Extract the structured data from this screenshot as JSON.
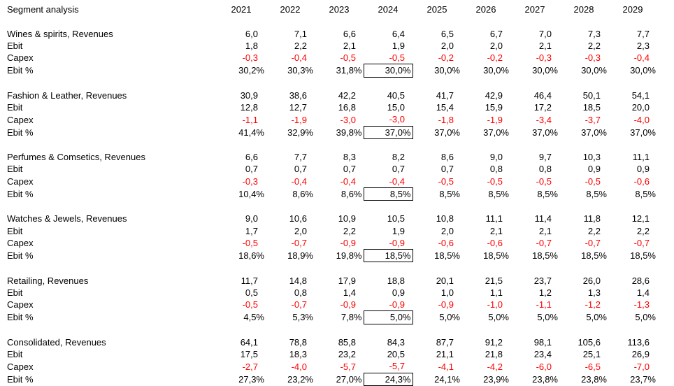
{
  "header": {
    "title": "Segment analysis",
    "years": [
      "2021",
      "2022",
      "2023",
      "2024",
      "2025",
      "2026",
      "2027",
      "2028",
      "2029"
    ]
  },
  "labels": {
    "revenues_suffix": ", Revenues",
    "ebit": "Ebit",
    "capex": "Capex",
    "ebit_pct": "Ebit %"
  },
  "highlight": {
    "year": "2024",
    "column_index": 3,
    "applies_to_row": "ebit_pct"
  },
  "colors": {
    "text": "#000000",
    "negative": "#ff0000",
    "background": "#ffffff",
    "box_border": "#000000"
  },
  "segments": [
    {
      "name": "Wines & spirits",
      "revenues": [
        "6,0",
        "7,1",
        "6,6",
        "6,4",
        "6,5",
        "6,7",
        "7,0",
        "7,3",
        "7,7"
      ],
      "ebit": [
        "1,8",
        "2,2",
        "2,1",
        "1,9",
        "2,0",
        "2,0",
        "2,1",
        "2,2",
        "2,3"
      ],
      "capex": [
        "-0,3",
        "-0,4",
        "-0,5",
        "-0,5",
        "-0,2",
        "-0,2",
        "-0,3",
        "-0,3",
        "-0,4"
      ],
      "ebit_pct": [
        "30,2%",
        "30,3%",
        "31,8%",
        "30,0%",
        "30,0%",
        "30,0%",
        "30,0%",
        "30,0%",
        "30,0%"
      ]
    },
    {
      "name": "Fashion & Leather",
      "revenues": [
        "30,9",
        "38,6",
        "42,2",
        "40,5",
        "41,7",
        "42,9",
        "46,4",
        "50,1",
        "54,1"
      ],
      "ebit": [
        "12,8",
        "12,7",
        "16,8",
        "15,0",
        "15,4",
        "15,9",
        "17,2",
        "18,5",
        "20,0"
      ],
      "capex": [
        "-1,1",
        "-1,9",
        "-3,0",
        "-3,0",
        "-1,8",
        "-1,9",
        "-3,4",
        "-3,7",
        "-4,0"
      ],
      "ebit_pct": [
        "41,4%",
        "32,9%",
        "39,8%",
        "37,0%",
        "37,0%",
        "37,0%",
        "37,0%",
        "37,0%",
        "37,0%"
      ]
    },
    {
      "name": "Perfumes & Comsetics",
      "revenues": [
        "6,6",
        "7,7",
        "8,3",
        "8,2",
        "8,6",
        "9,0",
        "9,7",
        "10,3",
        "11,1"
      ],
      "ebit": [
        "0,7",
        "0,7",
        "0,7",
        "0,7",
        "0,7",
        "0,8",
        "0,8",
        "0,9",
        "0,9"
      ],
      "capex": [
        "-0,3",
        "-0,4",
        "-0,4",
        "-0,4",
        "-0,5",
        "-0,5",
        "-0,5",
        "-0,5",
        "-0,6"
      ],
      "ebit_pct": [
        "10,4%",
        "8,6%",
        "8,6%",
        "8,5%",
        "8,5%",
        "8,5%",
        "8,5%",
        "8,5%",
        "8,5%"
      ]
    },
    {
      "name": "Watches & Jewels",
      "revenues": [
        "9,0",
        "10,6",
        "10,9",
        "10,5",
        "10,8",
        "11,1",
        "11,4",
        "11,8",
        "12,1"
      ],
      "ebit": [
        "1,7",
        "2,0",
        "2,2",
        "1,9",
        "2,0",
        "2,1",
        "2,1",
        "2,2",
        "2,2"
      ],
      "capex": [
        "-0,5",
        "-0,7",
        "-0,9",
        "-0,9",
        "-0,6",
        "-0,6",
        "-0,7",
        "-0,7",
        "-0,7"
      ],
      "ebit_pct": [
        "18,6%",
        "18,9%",
        "19,8%",
        "18,5%",
        "18,5%",
        "18,5%",
        "18,5%",
        "18,5%",
        "18,5%"
      ]
    },
    {
      "name": "Retailing",
      "revenues": [
        "11,7",
        "14,8",
        "17,9",
        "18,8",
        "20,1",
        "21,5",
        "23,7",
        "26,0",
        "28,6"
      ],
      "ebit": [
        "0,5",
        "0,8",
        "1,4",
        "0,9",
        "1,0",
        "1,1",
        "1,2",
        "1,3",
        "1,4"
      ],
      "capex": [
        "-0,5",
        "-0,7",
        "-0,9",
        "-0,9",
        "-0,9",
        "-1,0",
        "-1,1",
        "-1,2",
        "-1,3"
      ],
      "ebit_pct": [
        "4,5%",
        "5,3%",
        "7,8%",
        "5,0%",
        "5,0%",
        "5,0%",
        "5,0%",
        "5,0%",
        "5,0%"
      ]
    },
    {
      "name": "Consolidated",
      "revenues": [
        "64,1",
        "78,8",
        "85,8",
        "84,3",
        "87,7",
        "91,2",
        "98,1",
        "105,6",
        "113,6"
      ],
      "ebit": [
        "17,5",
        "18,3",
        "23,2",
        "20,5",
        "21,1",
        "21,8",
        "23,4",
        "25,1",
        "26,9"
      ],
      "capex": [
        "-2,7",
        "-4,0",
        "-5,7",
        "-5,7",
        "-4,1",
        "-4,2",
        "-6,0",
        "-6,5",
        "-7,0"
      ],
      "ebit_pct": [
        "27,3%",
        "23,2%",
        "27,0%",
        "24,3%",
        "24,1%",
        "23,9%",
        "23,8%",
        "23,8%",
        "23,7%"
      ]
    }
  ]
}
